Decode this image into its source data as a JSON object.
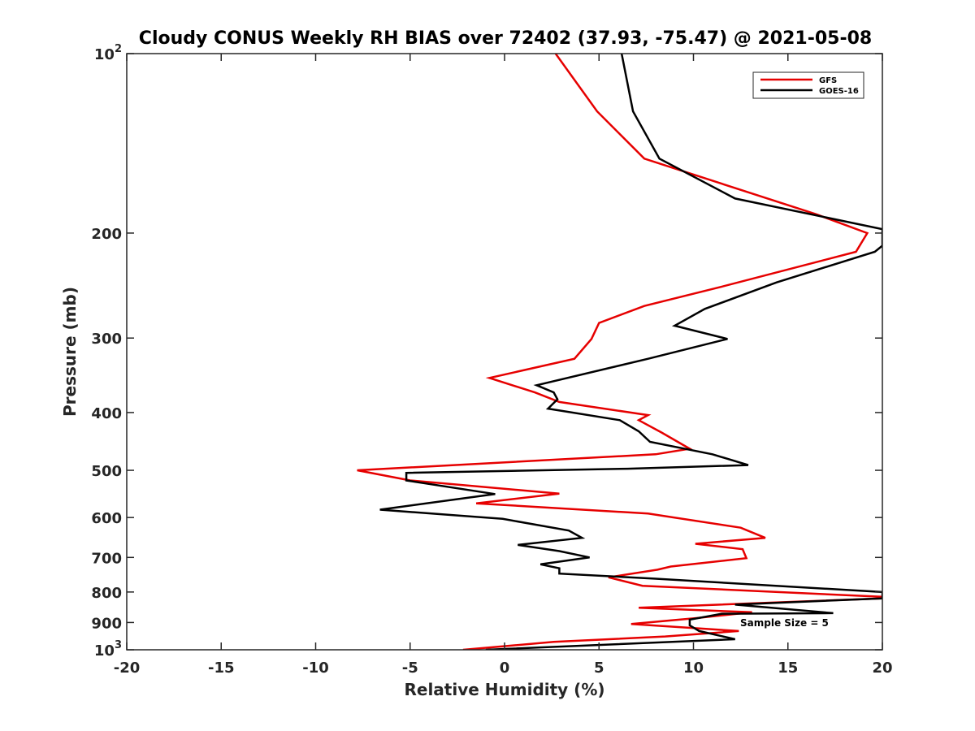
{
  "chart_data": {
    "type": "line",
    "title": "Cloudy CONUS Weekly RH BIAS over 72402 (37.93, -75.47) @ 2021-05-08",
    "xlabel": "Relative Humidity (%)",
    "ylabel": "Pressure (mb)",
    "xlim": [
      -20,
      20
    ],
    "ylim": [
      1000,
      100
    ],
    "y_scale": "log",
    "y_reversed": true,
    "xticks": [
      "-20",
      "-15",
      "-10",
      "-5",
      "0",
      "5",
      "10",
      "15",
      "20"
    ],
    "xtick_values": [
      -20,
      -15,
      -10,
      -5,
      0,
      5,
      10,
      15,
      20
    ],
    "yticks": [
      {
        "value": 100,
        "base": "10",
        "exp": "2"
      },
      {
        "value": 200,
        "label": "200"
      },
      {
        "value": 300,
        "label": "300"
      },
      {
        "value": 400,
        "label": "400"
      },
      {
        "value": 500,
        "label": "500"
      },
      {
        "value": 600,
        "label": "600"
      },
      {
        "value": 700,
        "label": "700"
      },
      {
        "value": 800,
        "label": "800"
      },
      {
        "value": 900,
        "label": "900"
      },
      {
        "value": 1000,
        "base": "10",
        "exp": "3"
      }
    ],
    "grid": false,
    "legend_position": "top-right",
    "annotation": "Sample Size = 5",
    "series": [
      {
        "name": "GFS",
        "color": "#e60000",
        "points": [
          [
            2.7,
            100
          ],
          [
            4.9,
            125
          ],
          [
            7.4,
            150
          ],
          [
            16.5,
            186
          ],
          [
            19.2,
            200
          ],
          [
            18.6,
            215
          ],
          [
            11.5,
            246
          ],
          [
            7.4,
            265
          ],
          [
            5.0,
            283
          ],
          [
            4.6,
            301
          ],
          [
            3.7,
            325
          ],
          [
            -0.8,
            350
          ],
          [
            1.6,
            370
          ],
          [
            2.9,
            384
          ],
          [
            7.6,
            404
          ],
          [
            7.1,
            412
          ],
          [
            8.3,
            432
          ],
          [
            9.8,
            460
          ],
          [
            8.0,
            470
          ],
          [
            -7.8,
            500
          ],
          [
            -5.0,
            520
          ],
          [
            2.9,
            547
          ],
          [
            -1.5,
            568
          ],
          [
            7.6,
            591
          ],
          [
            12.5,
            624
          ],
          [
            13.8,
            649
          ],
          [
            10.1,
            664
          ],
          [
            12.6,
            678
          ],
          [
            12.8,
            702
          ],
          [
            8.8,
            725
          ],
          [
            8.1,
            734
          ],
          [
            5.5,
            756
          ],
          [
            7.3,
            781
          ],
          [
            20.0,
            815
          ],
          [
            20.0,
            820
          ],
          [
            7.1,
            850
          ],
          [
            13.1,
            865
          ],
          [
            10.1,
            885
          ],
          [
            6.7,
            905
          ],
          [
            12.4,
            930
          ],
          [
            8.5,
            950
          ],
          [
            2.6,
            970
          ],
          [
            -2.2,
            1000
          ]
        ]
      },
      {
        "name": "GOES-16",
        "color": "#000000",
        "points": [
          [
            6.2,
            100
          ],
          [
            6.8,
            125
          ],
          [
            8.2,
            150
          ],
          [
            12.2,
            175
          ],
          [
            20.0,
            197
          ],
          [
            20.0,
            210
          ],
          [
            19.6,
            215
          ],
          [
            14.4,
            242
          ],
          [
            10.6,
            268
          ],
          [
            9.0,
            286
          ],
          [
            11.8,
            301
          ],
          [
            7.6,
            325
          ],
          [
            1.7,
            360
          ],
          [
            2.6,
            370
          ],
          [
            2.8,
            380
          ],
          [
            2.3,
            394
          ],
          [
            6.1,
            412
          ],
          [
            7.1,
            430
          ],
          [
            7.7,
            448
          ],
          [
            11.0,
            470
          ],
          [
            12.9,
            490
          ],
          [
            6.5,
            497
          ],
          [
            -5.2,
            505
          ],
          [
            -5.2,
            520
          ],
          [
            -0.5,
            548
          ],
          [
            -6.6,
            582
          ],
          [
            -0.1,
            603
          ],
          [
            3.4,
            631
          ],
          [
            4.1,
            649
          ],
          [
            0.7,
            667
          ],
          [
            2.9,
            683
          ],
          [
            4.5,
            700
          ],
          [
            1.9,
            719
          ],
          [
            2.9,
            730
          ],
          [
            2.9,
            745
          ],
          [
            8.0,
            760
          ],
          [
            20.0,
            800
          ],
          [
            20.0,
            820
          ],
          [
            12.2,
            840
          ],
          [
            17.4,
            868
          ],
          [
            11.5,
            870
          ],
          [
            9.8,
            890
          ],
          [
            9.8,
            910
          ],
          [
            10.3,
            930
          ],
          [
            12.2,
            960
          ],
          [
            -1.0,
            1000
          ]
        ]
      }
    ]
  }
}
